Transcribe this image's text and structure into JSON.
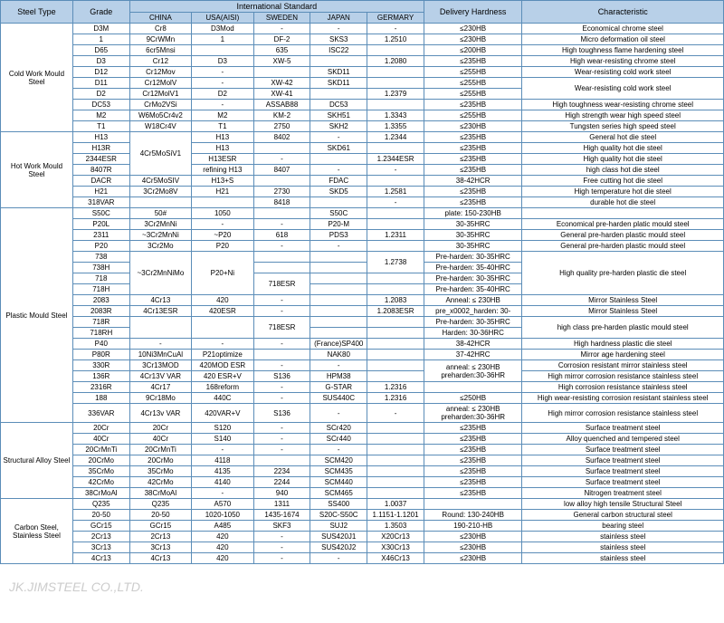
{
  "headers": {
    "steelType": "Steel Type",
    "grade": "Grade",
    "intl": "International Standard",
    "china": "CHINA",
    "usa": "USA(AISI)",
    "sweden": "SWEDEN",
    "japan": "JAPAN",
    "germany": "GERMARY",
    "hardness": "Delivery Hardness",
    "char": "Characteristic"
  },
  "colWidths": {
    "type": 70,
    "grade": 55,
    "c1": 60,
    "c2": 60,
    "c3": 55,
    "c4": 55,
    "c5": 55,
    "hard": 95,
    "char": 195
  },
  "groups": [
    {
      "name": "Cold Work Mould Steel",
      "rows": [
        {
          "g": "D3M",
          "c": [
            "Cr8",
            "D3Mod",
            "-",
            "-",
            "-"
          ],
          "h": "≤230HB",
          "ch": "Economical chrome steel"
        },
        {
          "g": "1",
          "c": [
            "9CrWMn",
            "1",
            "DF-2",
            "SKS3",
            "1.2510"
          ],
          "h": "≤230HB",
          "ch": "Micro deformation oil steel"
        },
        {
          "g": "D65",
          "c": [
            "6cr5Mnsi",
            "",
            "635",
            "ISC22",
            ""
          ],
          "h": "≤200HB",
          "ch": "High toughness flame hardening steel"
        },
        {
          "g": "D3",
          "c": [
            "Cr12",
            "D3",
            "XW-5",
            "",
            "1.2080"
          ],
          "h": "≤235HB",
          "ch": "High wear-resisting chrome steel"
        },
        {
          "g": "D12",
          "c": [
            "Cr12Mov",
            "-",
            "",
            "SKD11",
            ""
          ],
          "h": "≤255HB",
          "ch": "Wear-resisting cold work steel"
        },
        {
          "g": "D11",
          "c": [
            "Cr12MolV",
            "-",
            "XW-42",
            "SKD11",
            ""
          ],
          "h": "≤255HB",
          "ch": "Wear-resisting cold work steel",
          "chSpan": 2
        },
        {
          "g": "D2",
          "c": [
            "Cr12MolV1",
            "D2",
            "XW-41",
            "",
            "1.2379"
          ],
          "h": "≤255HB"
        },
        {
          "g": "DC53",
          "c": [
            "CrMo2VSi",
            "-",
            "ASSAB88",
            "DC53",
            ""
          ],
          "h": "≤235HB",
          "ch": "High toughness wear-resisting chrome steel"
        },
        {
          "g": "M2",
          "c": [
            "W6Mo5Cr4v2",
            "M2",
            "KM-2",
            "SKH51",
            "1.3343"
          ],
          "h": "≤255HB",
          "ch": "High strength wear high speed steel"
        },
        {
          "g": "T1",
          "c": [
            "W18Cr4V",
            "T1",
            "2750",
            "SKH2",
            "1.3355"
          ],
          "h": "≤230HB",
          "ch": "Tungsten series high speed steel"
        }
      ]
    },
    {
      "name": "Hot Work Mould Steel",
      "rows": [
        {
          "g": "H13",
          "c": [
            "",
            "H13",
            "8402",
            "-",
            "1.2344"
          ],
          "h": "≤235HB",
          "ch": "General hot die steel",
          "c1Span": 4,
          "c1": "4Cr5MoSiV1"
        },
        {
          "g": "H13R",
          "c": [
            "",
            "H13",
            "",
            "SKD61",
            ""
          ],
          "h": "≤235HB",
          "ch": "High quality hot die steel"
        },
        {
          "g": "2344ESR",
          "c": [
            "",
            "H13ESR",
            "-",
            "",
            "1.2344ESR"
          ],
          "h": "≤235HB",
          "ch": "High quality hot die steel"
        },
        {
          "g": "8407R",
          "c": [
            "",
            "refining H13",
            "8407",
            "-",
            "-"
          ],
          "h": "≤235HB",
          "ch": "high class hot die steel"
        },
        {
          "g": "DACR",
          "c": [
            "4Cr5MoSIV",
            "H13+S",
            "",
            "FDAC",
            ""
          ],
          "h": "38-42HCR",
          "ch": "Free cutting hot die steel"
        },
        {
          "g": "H21",
          "c": [
            "3Cr2Mo8V",
            "H21",
            "2730",
            "SKD5",
            "1.2581"
          ],
          "h": "≤235HB",
          "ch": "High temperature hot die steel"
        },
        {
          "g": "318VAR",
          "c": [
            "",
            "",
            "8418",
            "",
            "-"
          ],
          "h": "≤235HB",
          "ch": "durable hot die steel"
        }
      ]
    },
    {
      "name": "Plastic Mould Steel",
      "rows": [
        {
          "g": "S50C",
          "c": [
            "50#",
            "1050",
            "",
            "S50C",
            ""
          ],
          "h": "plate: 150-230HB",
          "ch": ""
        },
        {
          "g": "P20L",
          "c": [
            "3Cr2MnNi",
            "-",
            "-",
            "P20-M",
            ""
          ],
          "h": "30-35HRC",
          "ch": "Economical pre-harden platic mould steel"
        },
        {
          "g": "2311",
          "c": [
            "~3Cr2MnNi",
            "~P20",
            "618",
            "PDS3",
            "1.2311"
          ],
          "h": "30-35HRC",
          "ch": "General pre-harden plastic mould steel"
        },
        {
          "g": "P20",
          "c": [
            "3Cr2Mo",
            "P20",
            "-",
            "-",
            ""
          ],
          "h": "30-35HRC",
          "ch": "General pre-harden plastic mould steel"
        },
        {
          "g": "738",
          "c": [
            "",
            "",
            "",
            "",
            "1.2738"
          ],
          "h": "Pre-harden: 30-35HRC",
          "ch": "High quality pre-harden plastic die steel",
          "c1Span": 4,
          "c1": "~3Cr2MnNiMo",
          "c2Span": 4,
          "c2": "P20+Ni",
          "chSpan": 4,
          "c5Span": 2
        },
        {
          "g": "738H",
          "c": [
            "",
            "",
            "",
            "",
            ""
          ],
          "h": "Pre-harden: 35-40HRC"
        },
        {
          "g": "718",
          "c": [
            "",
            "",
            "718ESR",
            "",
            ""
          ],
          "h": "Pre-harden: 30-35HRC",
          "c3Span": 2
        },
        {
          "g": "718H",
          "c": [
            "",
            "",
            "",
            "",
            ""
          ],
          "h": "Pre-harden: 35-40HRC"
        },
        {
          "g": "2083",
          "c": [
            "4Cr13",
            "420",
            "-",
            "",
            "1.2083"
          ],
          "h": "Anneal: ≤ 230HB",
          "ch": "Mirror Stainless Steel"
        },
        {
          "g": "2083R",
          "c": [
            "4Cr13ESR",
            "420ESR",
            "-",
            "",
            "1.2083ESR"
          ],
          "h": "pre_x0002_harden: 30-",
          "ch": "Mirror Stainless Steel"
        },
        {
          "g": "718R",
          "c": [
            "3Cr2MnNiMo",
            "P20+Ni",
            "718ESR",
            "",
            ""
          ],
          "h": "Pre-harden: 30-35HRC",
          "ch": "high class pre-harden plastic mould steel",
          "c1Span": 2,
          "c2Span": 2,
          "c3Span": 2,
          "chSpan": 2
        },
        {
          "g": "718RH",
          "c": [
            "",
            "",
            "",
            "",
            ""
          ],
          "h": "Harden: 30-36HRC"
        },
        {
          "g": "P40",
          "c": [
            "-",
            "-",
            "-",
            "(France)SP400",
            ""
          ],
          "h": "38-42HCR",
          "ch": "High hardness plastic die steel"
        },
        {
          "g": "P80R",
          "c": [
            "10Ni3MnCuAl",
            "P21optimize",
            "",
            "NAK80",
            ""
          ],
          "h": "37-42HRC",
          "ch": "Mirror age hardening steel"
        },
        {
          "g": "330R",
          "c": [
            "3Cr13MOD",
            "420MOD ESR",
            "-",
            "-",
            ""
          ],
          "h": "anneal: ≤ 230HB preharden:30-36HR",
          "ch": "Corrosion resistant mirror stainless steel",
          "hSpan": 2
        },
        {
          "g": "136R",
          "c": [
            "4Cr13V VAR",
            "420 ESR+V",
            "S136",
            "HPM38",
            ""
          ],
          "ch": "High mirror corrosion resistance stainless steel"
        },
        {
          "g": "2316R",
          "c": [
            "4Cr17",
            "168reform",
            "-",
            "G-STAR",
            "1.2316"
          ],
          "h": "",
          "ch": "High corrosion resistance stainless steel"
        },
        {
          "g": "188",
          "c": [
            "9Cr18Mo",
            "440C",
            "-",
            "SUS440C",
            "1.2316"
          ],
          "h": "≤250HB",
          "ch": "High wear-resisting corrosion resistant stainless steel"
        },
        {
          "g": "336VAR",
          "c": [
            "4Cr13v VAR",
            "420VAR+V",
            "S136",
            "-",
            "-"
          ],
          "h": "anneal: ≤ 230HB preharden:30-36HR",
          "ch": "High mirror corrosion resistance stainless steel"
        }
      ]
    },
    {
      "name": "Structural Alloy Steel",
      "rows": [
        {
          "g": "20Cr",
          "c": [
            "20Cr",
            "S120",
            "-",
            "SCr420",
            ""
          ],
          "h": "≤235HB",
          "ch": "Surface treatment steel"
        },
        {
          "g": "40Cr",
          "c": [
            "40Cr",
            "S140",
            "-",
            "SCr440",
            ""
          ],
          "h": "≤235HB",
          "ch": "Alloy quenched and tempered steel"
        },
        {
          "g": "20CrMnTi",
          "c": [
            "20CrMnTi",
            "-",
            "-",
            "-",
            ""
          ],
          "h": "≤235HB",
          "ch": "Surface treatment steel"
        },
        {
          "g": "20CrMo",
          "c": [
            "20CrMo",
            "4118",
            "",
            "SCM420",
            ""
          ],
          "h": "≤235HB",
          "ch": "Surface treatment steel"
        },
        {
          "g": "35CrMo",
          "c": [
            "35CrMo",
            "4135",
            "2234",
            "SCM435",
            ""
          ],
          "h": "≤235HB",
          "ch": "Surface treatment steel"
        },
        {
          "g": "42CrMo",
          "c": [
            "42CrMo",
            "4140",
            "2244",
            "SCM440",
            ""
          ],
          "h": "≤235HB",
          "ch": "Surface treatment steel"
        },
        {
          "g": "38CrMoAl",
          "c": [
            "38CrMoAl",
            "-",
            "940",
            "SCM465",
            ""
          ],
          "h": "≤235HB",
          "ch": "Nitrogen treatment steel"
        }
      ]
    },
    {
      "name": "Carbon Steel, Stainless Steel",
      "rows": [
        {
          "g": "Q235",
          "c": [
            "Q235",
            "A570",
            "1311",
            "SS400",
            "1.0037"
          ],
          "h": "",
          "ch": "low alloy high tensile Structural Steel"
        },
        {
          "g": "20-50",
          "c": [
            "20-50",
            "1020-1050",
            "1435-1674",
            "S20C-S50C",
            "1.1151-1.1201"
          ],
          "h": "Round: 130-240HB",
          "ch": "General carbon structural steel"
        },
        {
          "g": "GCr15",
          "c": [
            "GCr15",
            "A485",
            "SKF3",
            "SUJ2",
            "1.3503"
          ],
          "h": "190-210-HB",
          "ch": "bearing steel"
        },
        {
          "g": "2Cr13",
          "c": [
            "2Cr13",
            "420",
            "-",
            "SUS420J1",
            "X20Cr13"
          ],
          "h": "≤230HB",
          "ch": "stainless steel"
        },
        {
          "g": "3Cr13",
          "c": [
            "3Cr13",
            "420",
            "-",
            "SUS420J2",
            "X30Cr13"
          ],
          "h": "≤230HB",
          "ch": "stainless steel"
        },
        {
          "g": "4Cr13",
          "c": [
            "4Cr13",
            "420",
            "-",
            "-",
            "X46Cr13"
          ],
          "h": "≤230HB",
          "ch": "stainless steel"
        }
      ]
    }
  ],
  "watermark": "JK.JIMSTEEL CO.,LTD."
}
